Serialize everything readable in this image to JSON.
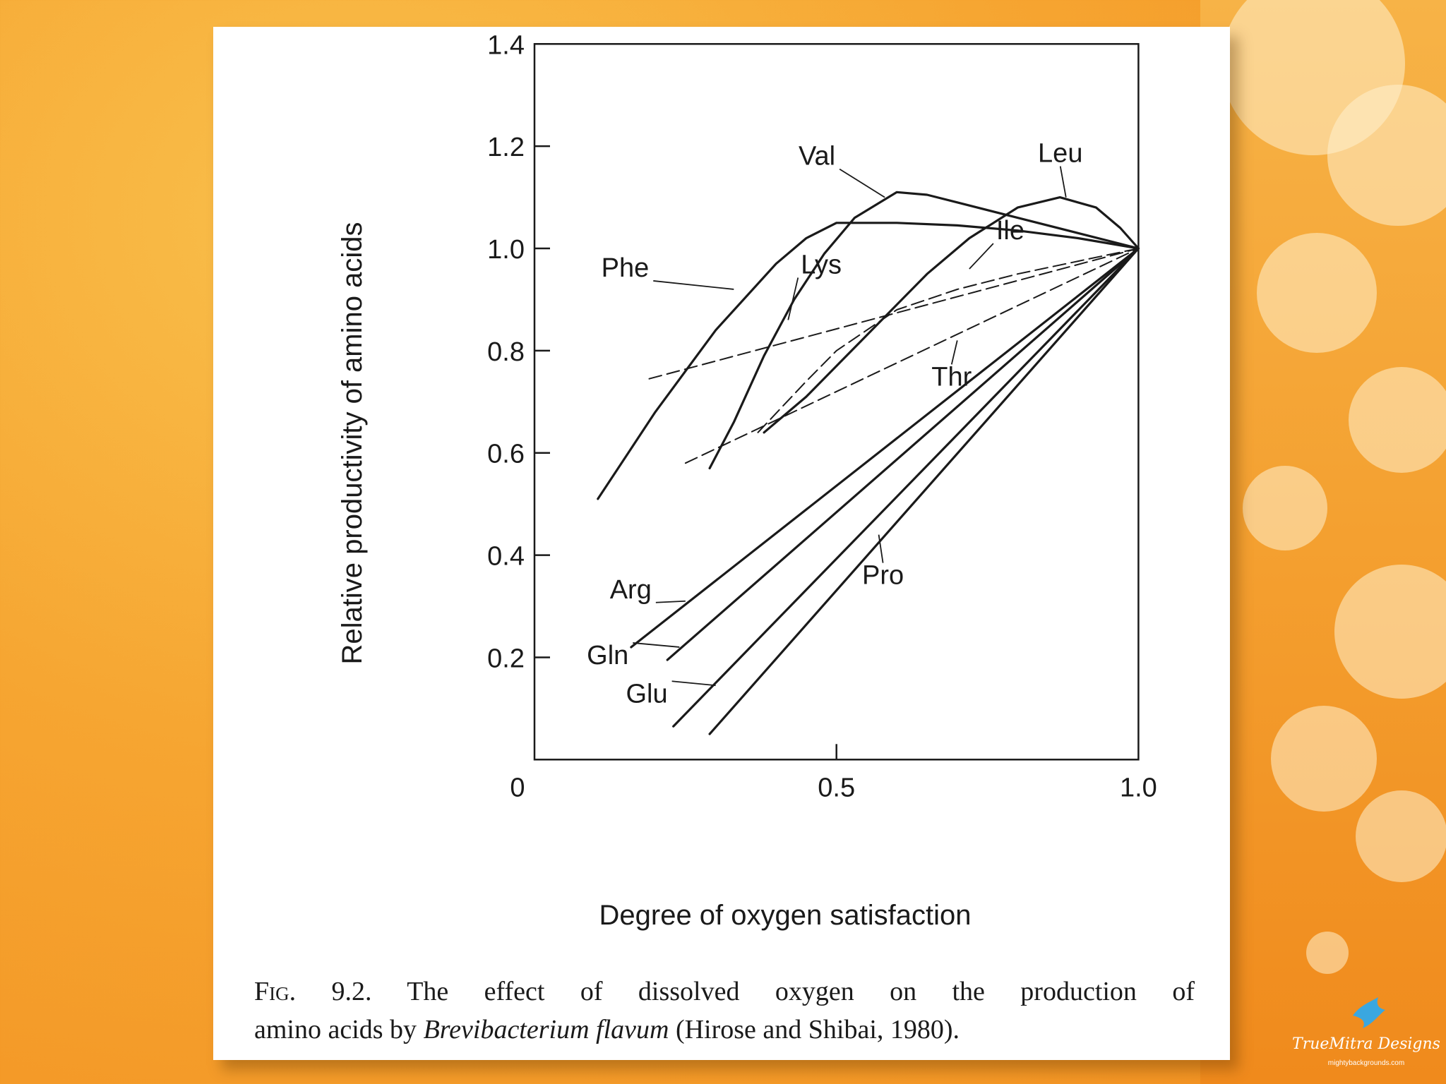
{
  "chart_data": {
    "type": "line",
    "xlabel": "Degree of oxygen satisfaction",
    "ylabel": "Relative productivity of amino acids",
    "xlim": [
      0,
      1.0
    ],
    "ylim": [
      0,
      1.4
    ],
    "x_ticks": [
      0,
      0.5,
      1.0
    ],
    "x_tick_labels": [
      "0",
      "0.5",
      "1.0"
    ],
    "y_ticks": [
      0.2,
      0.4,
      0.6,
      0.8,
      1.0,
      1.2,
      1.4
    ],
    "y_tick_labels": [
      "0.2",
      "0.4",
      "0.6",
      "0.8",
      "1.0",
      "1.2",
      "1.4"
    ],
    "grid": false,
    "series": [
      {
        "name": "Phe",
        "style": "solid",
        "x": [
          0.105,
          0.2,
          0.3,
          0.4,
          0.45,
          0.5,
          0.6,
          0.7,
          0.8,
          0.9,
          1.0
        ],
        "y": [
          0.51,
          0.68,
          0.84,
          0.97,
          1.02,
          1.05,
          1.05,
          1.045,
          1.035,
          1.02,
          1.0
        ]
      },
      {
        "name": "Val",
        "style": "solid",
        "x": [
          0.29,
          0.33,
          0.38,
          0.43,
          0.48,
          0.53,
          0.6,
          0.65,
          0.7,
          0.8,
          0.9,
          1.0
        ],
        "y": [
          0.57,
          0.66,
          0.79,
          0.9,
          0.99,
          1.06,
          1.11,
          1.105,
          1.09,
          1.06,
          1.03,
          1.0
        ]
      },
      {
        "name": "Leu",
        "style": "solid",
        "x": [
          0.38,
          0.45,
          0.55,
          0.65,
          0.72,
          0.8,
          0.87,
          0.93,
          0.97,
          1.0
        ],
        "y": [
          0.64,
          0.71,
          0.83,
          0.95,
          1.02,
          1.08,
          1.1,
          1.08,
          1.04,
          1.0
        ]
      },
      {
        "name": "Lys",
        "style": "dashed",
        "x": [
          0.19,
          1.0
        ],
        "y": [
          0.745,
          1.0
        ]
      },
      {
        "name": "Ile",
        "style": "dashed",
        "x": [
          0.37,
          0.45,
          0.5,
          0.6,
          0.7,
          0.8,
          0.9,
          1.0
        ],
        "y": [
          0.64,
          0.74,
          0.8,
          0.88,
          0.92,
          0.95,
          0.975,
          1.0
        ]
      },
      {
        "name": "Thr",
        "style": "dashed",
        "x": [
          0.25,
          1.0
        ],
        "y": [
          0.58,
          1.0
        ]
      },
      {
        "name": "Arg",
        "style": "solid",
        "x": [
          0.16,
          1.0
        ],
        "y": [
          0.22,
          1.0
        ]
      },
      {
        "name": "Gln",
        "style": "solid",
        "x": [
          0.22,
          1.0
        ],
        "y": [
          0.195,
          1.0
        ]
      },
      {
        "name": "Glu",
        "style": "solid",
        "x": [
          0.23,
          1.0
        ],
        "y": [
          0.065,
          1.0
        ]
      },
      {
        "name": "Pro",
        "style": "solid",
        "x": [
          0.29,
          1.0
        ],
        "y": [
          0.05,
          1.0
        ]
      }
    ]
  },
  "caption": {
    "fig_label": "Fig. 9.2.",
    "line1": "The effect of dissolved oxygen on the production of",
    "line2_pre": "amino acids by",
    "organism": "Brevibacterium flavum",
    "line2_post": "(Hirose and Shibai, 1980)."
  },
  "watermark": {
    "brand": "TrueMitra Designs",
    "site": "mightybackgrounds.com"
  },
  "colors": {
    "background": "#f6a531",
    "ink": "#1a1a1a"
  }
}
